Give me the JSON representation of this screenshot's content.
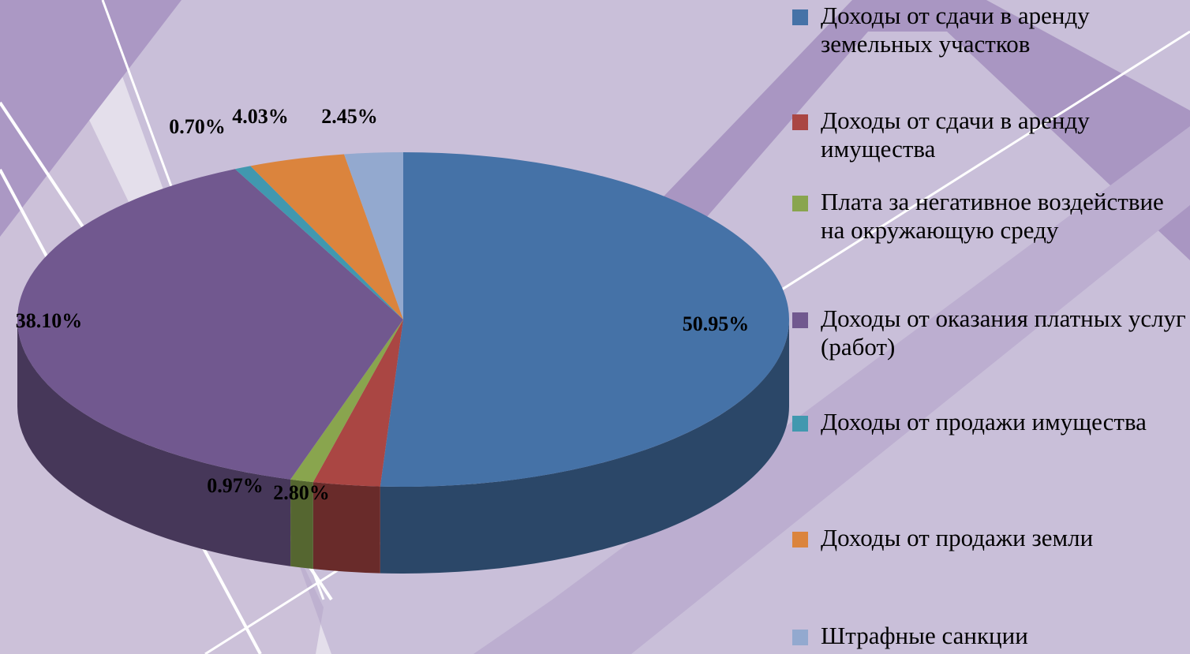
{
  "chart_data": {
    "type": "pie",
    "categories": [
      "Доходы от сдачи в аренду земельных участков",
      "Доходы от сдачи в аренду имущества",
      "Плата за негативное воздействие на окружающую среду",
      "Доходы от оказания платных услуг (работ)",
      "Доходы от продажи имущества",
      "Доходы от продажи земли",
      "Штрафные санкции"
    ],
    "values": [
      50.95,
      2.8,
      0.97,
      38.1,
      0.7,
      4.03,
      2.45
    ],
    "value_labels": [
      "50.95%",
      "2.80%",
      "0.97%",
      "38.10%",
      "0.70%",
      "4.03%",
      "2.45%"
    ],
    "colors": [
      "#4572a7",
      "#aa4643",
      "#89a54e",
      "#71588f",
      "#4198af",
      "#db843d",
      "#93a9cf"
    ],
    "legend": "right"
  }
}
